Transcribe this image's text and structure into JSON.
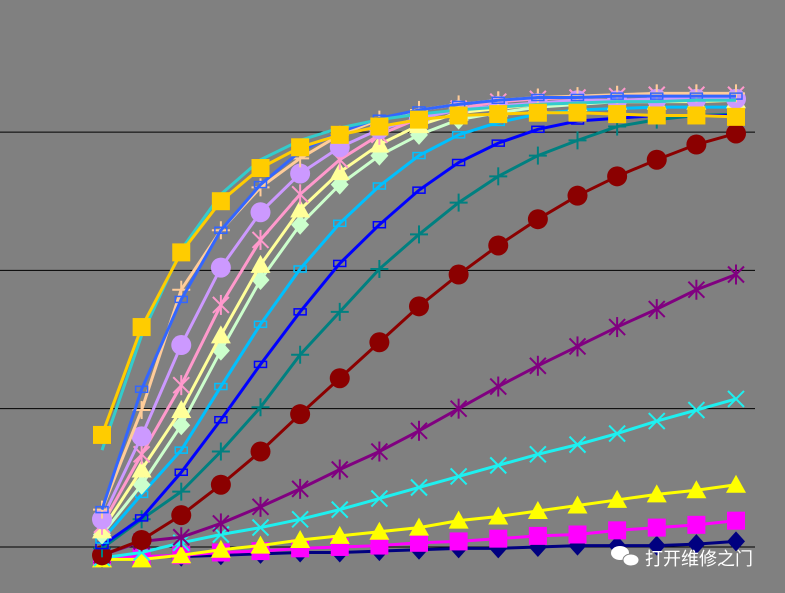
{
  "chart_data": {
    "type": "line",
    "categories": [
      null,
      null,
      null,
      null,
      null,
      null,
      null,
      null,
      null,
      null,
      null,
      null,
      null,
      null,
      null,
      null,
      null
    ],
    "ylim": [
      -0.333,
      3.955
    ],
    "yticks": [
      0,
      1,
      2,
      3
    ],
    "grid": true,
    "background": "#808080",
    "watermark": "打开维修之门",
    "series": [
      {
        "color": "#000080",
        "marker": "diamond",
        "values": [
          -0.08,
          -0.07,
          -0.07,
          -0.06,
          -0.05,
          -0.04,
          -0.04,
          -0.03,
          -0.02,
          -0.01,
          -0.01,
          0,
          0.01,
          0.01,
          0.01,
          0.02,
          0.04
        ]
      },
      {
        "color": "#ff00ff",
        "marker": "square",
        "values": [
          -0.08,
          -0.07,
          -0.06,
          -0.04,
          -0.03,
          -0.01,
          0,
          0.01,
          0.03,
          0.04,
          0.06,
          0.08,
          0.09,
          0.12,
          0.14,
          0.16,
          0.19
        ]
      },
      {
        "color": "#ffff00",
        "marker": "triangle",
        "values": [
          -0.09,
          -0.09,
          -0.06,
          -0.02,
          0.01,
          0.05,
          0.08,
          0.11,
          0.14,
          0.19,
          0.22,
          0.26,
          0.3,
          0.34,
          0.38,
          0.41,
          0.45
        ]
      },
      {
        "color": "#1ef0f0",
        "marker": "x",
        "values": [
          -0.08,
          -0.04,
          0.03,
          0.09,
          0.14,
          0.2,
          0.27,
          0.35,
          0.43,
          0.51,
          0.59,
          0.67,
          0.74,
          0.82,
          0.91,
          0.99,
          1.07
        ]
      },
      {
        "color": "#800080",
        "marker": "star",
        "values": [
          -0.06,
          0.04,
          0.07,
          0.17,
          0.29,
          0.42,
          0.56,
          0.69,
          0.84,
          1.0,
          1.16,
          1.31,
          1.45,
          1.59,
          1.72,
          1.86,
          1.97
        ]
      },
      {
        "color": "#8b0000",
        "marker": "circle",
        "values": [
          -0.06,
          0.05,
          0.23,
          0.45,
          0.69,
          0.96,
          1.22,
          1.48,
          1.74,
          1.97,
          2.18,
          2.37,
          2.54,
          2.68,
          2.8,
          2.91,
          2.99
        ]
      },
      {
        "color": "#008080",
        "marker": "plus",
        "values": [
          -0.01,
          0.2,
          0.4,
          0.69,
          1.01,
          1.39,
          1.7,
          2.01,
          2.26,
          2.49,
          2.68,
          2.83,
          2.94,
          3.04,
          3.09,
          3.12,
          3.13
        ]
      },
      {
        "color": "#0000ff",
        "marker": "dash",
        "values": [
          0.01,
          0.21,
          0.54,
          0.92,
          1.32,
          1.7,
          2.05,
          2.33,
          2.58,
          2.78,
          2.92,
          3.02,
          3.08,
          3.1,
          3.12,
          3.12,
          3.12
        ]
      },
      {
        "color": "#00c0ff",
        "marker": "dash",
        "values": [
          0.05,
          0.38,
          0.7,
          1.16,
          1.61,
          2.01,
          2.34,
          2.61,
          2.83,
          2.98,
          3.07,
          3.13,
          3.16,
          3.17,
          3.18,
          3.18,
          3.18
        ]
      },
      {
        "color": "#ccffcc",
        "marker": "diamond",
        "values": [
          0.09,
          0.45,
          0.88,
          1.42,
          1.93,
          2.33,
          2.62,
          2.83,
          2.98,
          3.09,
          3.14,
          3.18,
          3.2,
          3.22,
          3.22,
          3.23,
          3.23
        ]
      },
      {
        "color": "#ffff99",
        "marker": "triangle",
        "values": [
          0.12,
          0.56,
          0.99,
          1.53,
          2.04,
          2.44,
          2.71,
          2.91,
          3.05,
          3.14,
          3.17,
          3.2,
          3.21,
          3.22,
          3.22,
          3.22,
          3.23
        ]
      },
      {
        "color": "#ff99cc",
        "marker": "star",
        "values": [
          0.16,
          0.67,
          1.17,
          1.75,
          2.22,
          2.55,
          2.8,
          2.98,
          3.1,
          3.17,
          3.22,
          3.24,
          3.25,
          3.26,
          3.27,
          3.27,
          3.27
        ]
      },
      {
        "color": "#cc99ff",
        "marker": "circle",
        "values": [
          0.2,
          0.8,
          1.46,
          2.02,
          2.42,
          2.7,
          2.89,
          3.02,
          3.1,
          3.16,
          3.19,
          3.21,
          3.23,
          3.23,
          3.24,
          3.24,
          3.24
        ]
      },
      {
        "color": "#ffcc99",
        "marker": "plus",
        "values": [
          0.27,
          0.99,
          1.86,
          2.29,
          2.6,
          2.81,
          2.98,
          3.09,
          3.16,
          3.2,
          3.23,
          3.25,
          3.26,
          3.27,
          3.28,
          3.28,
          3.28
        ]
      },
      {
        "color": "#3366ff",
        "marker": "dash",
        "values": [
          0.27,
          1.14,
          1.79,
          2.29,
          2.62,
          2.86,
          3.0,
          3.1,
          3.16,
          3.2,
          3.23,
          3.25,
          3.25,
          3.26,
          3.26,
          3.26,
          3.26
        ]
      },
      {
        "color": "#33cccc",
        "marker": "none",
        "values": [
          0.7,
          1.53,
          2.15,
          2.55,
          2.8,
          2.94,
          3.03,
          3.09,
          3.13,
          3.16,
          3.18,
          3.2,
          3.21,
          3.22,
          3.22,
          3.23,
          3.23
        ]
      },
      {
        "color": "#ffcc00",
        "marker": "square",
        "values": [
          0.81,
          1.59,
          2.13,
          2.5,
          2.74,
          2.89,
          2.98,
          3.04,
          3.09,
          3.12,
          3.13,
          3.14,
          3.14,
          3.13,
          3.12,
          3.12,
          3.11
        ]
      }
    ]
  }
}
